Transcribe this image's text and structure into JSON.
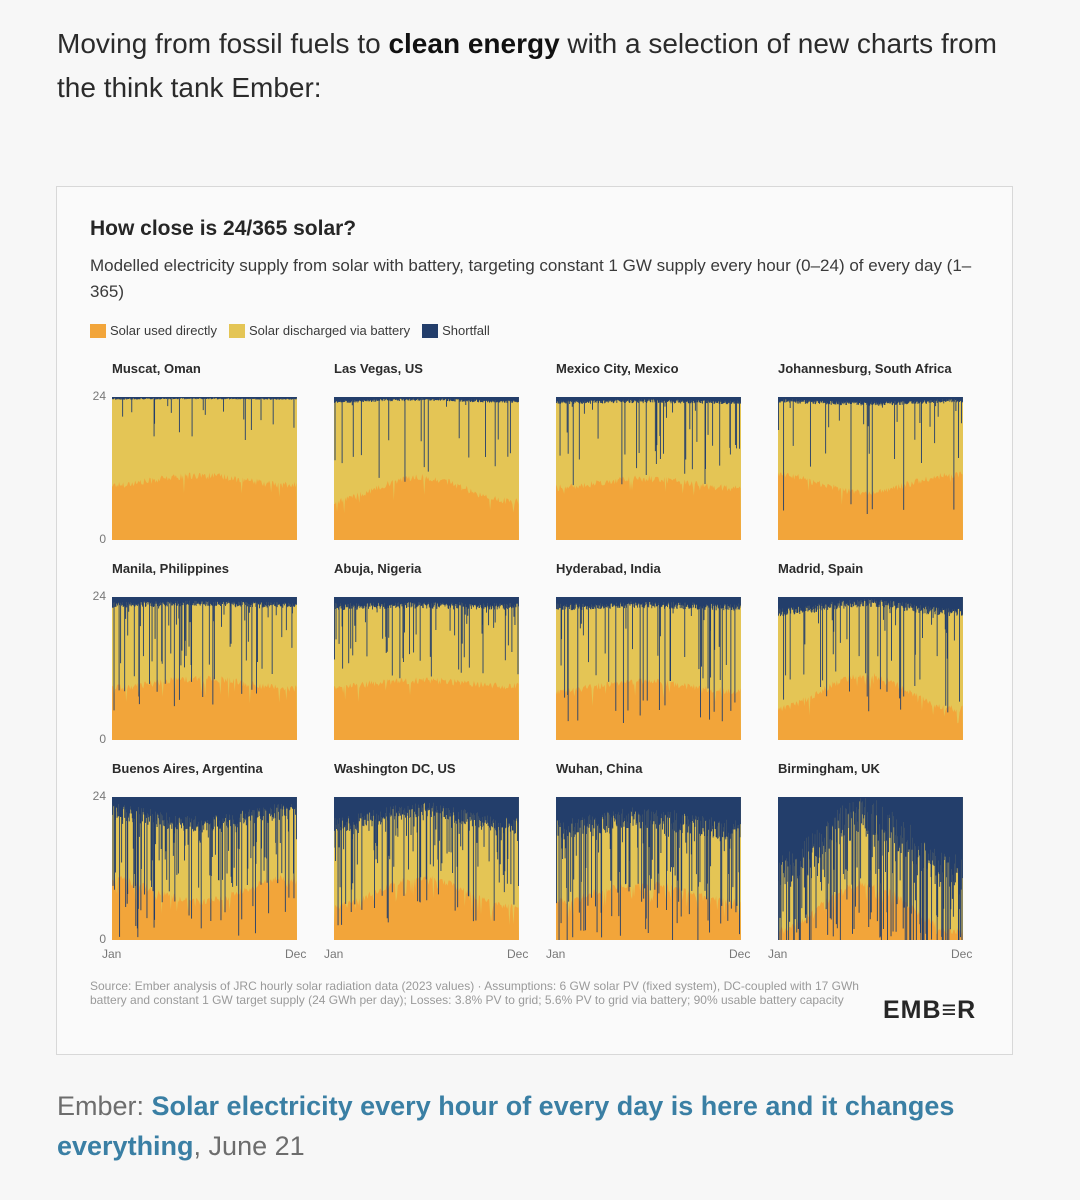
{
  "intro": {
    "before": "Moving from fossil fuels to ",
    "bold": "clean energy",
    "after": " with a selection of new charts from the think tank Ember:"
  },
  "chart_data": {
    "type": "area",
    "title": "How close is 24/365 solar?",
    "subtitle": "Modelled electricity supply from solar with battery, targeting constant 1 GW supply every hour (0–24) of every day (1–365)",
    "legend": [
      {
        "label": "Solar used directly",
        "color": "#f2a53a"
      },
      {
        "label": "Solar discharged via battery",
        "color": "#e4c555"
      },
      {
        "label": "Shortfall",
        "color": "#233e6b"
      }
    ],
    "legend_placement": "top-left",
    "y_ticks": [
      "24",
      "0"
    ],
    "x_ticks": [
      "Jan",
      "Dec"
    ],
    "ylim": [
      0,
      24
    ],
    "x_units": "day of year",
    "panels": [
      {
        "name": "Muscat, Oman",
        "direct_hours": 10.0,
        "seasonal_amp": 0.8,
        "shortfall_mean": 0.3,
        "spike_rate": 0.05,
        "spike_max": 8
      },
      {
        "name": "Las Vegas, US",
        "direct_hours": 8.5,
        "seasonal_amp": 2.0,
        "shortfall_mean": 0.6,
        "spike_rate": 0.07,
        "spike_max": 14
      },
      {
        "name": "Mexico City, Mexico",
        "direct_hours": 9.5,
        "seasonal_amp": 0.8,
        "shortfall_mean": 0.8,
        "spike_rate": 0.09,
        "spike_max": 14
      },
      {
        "name": "Johannesburg, South Africa",
        "direct_hours": 9.5,
        "seasonal_amp": -1.5,
        "shortfall_mean": 0.9,
        "spike_rate": 0.1,
        "spike_max": 20
      },
      {
        "name": "Manila, Philippines",
        "direct_hours": 9.5,
        "seasonal_amp": 0.8,
        "shortfall_mean": 1.2,
        "spike_rate": 0.16,
        "spike_max": 18
      },
      {
        "name": "Abuja, Nigeria",
        "direct_hours": 9.5,
        "seasonal_amp": 0.5,
        "shortfall_mean": 1.5,
        "spike_rate": 0.14,
        "spike_max": 12
      },
      {
        "name": "Hyderabad, India",
        "direct_hours": 9.0,
        "seasonal_amp": 0.8,
        "shortfall_mean": 1.5,
        "spike_rate": 0.12,
        "spike_max": 20
      },
      {
        "name": "Madrid, Spain",
        "direct_hours": 8.0,
        "seasonal_amp": 2.8,
        "shortfall_mean": 1.8,
        "spike_rate": 0.14,
        "spike_max": 18
      },
      {
        "name": "Buenos Aires, Argentina",
        "direct_hours": 8.5,
        "seasonal_amp": -2.0,
        "shortfall_mean": 3.5,
        "spike_rate": 0.3,
        "spike_max": 20
      },
      {
        "name": "Washington DC, US",
        "direct_hours": 8.0,
        "seasonal_amp": 2.5,
        "shortfall_mean": 3.5,
        "spike_rate": 0.25,
        "spike_max": 18
      },
      {
        "name": "Wuhan, China",
        "direct_hours": 8.0,
        "seasonal_amp": 1.5,
        "shortfall_mean": 4.5,
        "spike_rate": 0.35,
        "spike_max": 20
      },
      {
        "name": "Birmingham, UK",
        "direct_hours": 5.5,
        "seasonal_amp": 4.0,
        "shortfall_mean": 8.0,
        "spike_rate": 0.4,
        "spike_max": 22
      }
    ],
    "source": "Source: Ember analysis of JRC hourly solar radiation data (2023 values) · Assumptions: 6 GW solar PV (fixed system), DC-coupled with 17 GWh battery and constant 1 GW target supply (24 GWh per day); Losses: 3.8% PV to grid; 5.6% PV to grid via battery; 90% usable battery capacity",
    "logo": "EMB≡R"
  },
  "caption": {
    "prefix": "Ember: ",
    "link": "Solar electricity every hour of every day is here and it changes everything",
    "suffix": ", June 21"
  }
}
